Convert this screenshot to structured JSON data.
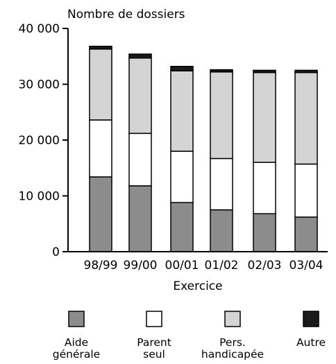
{
  "chart_data": {
    "type": "bar",
    "stacked": true,
    "ylabel": "Nombre de dossiers",
    "xlabel": "Exercice",
    "categories": [
      "98/99",
      "99/00",
      "00/01",
      "01/02",
      "02/03",
      "03/04"
    ],
    "ylim": [
      0,
      40000
    ],
    "y_ticks": [
      0,
      10000,
      20000,
      30000,
      40000
    ],
    "y_tick_labels": [
      "0",
      "10 000",
      "20 000",
      "30 000",
      "40 000"
    ],
    "grid": false,
    "legend_position": "bottom",
    "series": [
      {
        "name": "Aide générale",
        "legend_lines": [
          "Aide",
          "générale"
        ],
        "color": "#8c8c8c",
        "values": [
          13400,
          11800,
          8800,
          7500,
          6800,
          6200
        ]
      },
      {
        "name": "Parent seul",
        "legend_lines": [
          "Parent",
          "seul"
        ],
        "color": "#ffffff",
        "values": [
          10200,
          9400,
          9200,
          9200,
          9200,
          9500
        ]
      },
      {
        "name": "Pers. handicapée",
        "legend_lines": [
          "Pers.",
          "handicapée"
        ],
        "color": "#d4d4d4",
        "values": [
          12700,
          13500,
          14400,
          15500,
          16100,
          16400
        ]
      },
      {
        "name": "Autre",
        "legend_lines": [
          "Autre"
        ],
        "color": "#1a1a1a",
        "values": [
          500,
          700,
          800,
          400,
          400,
          400
        ]
      }
    ]
  }
}
